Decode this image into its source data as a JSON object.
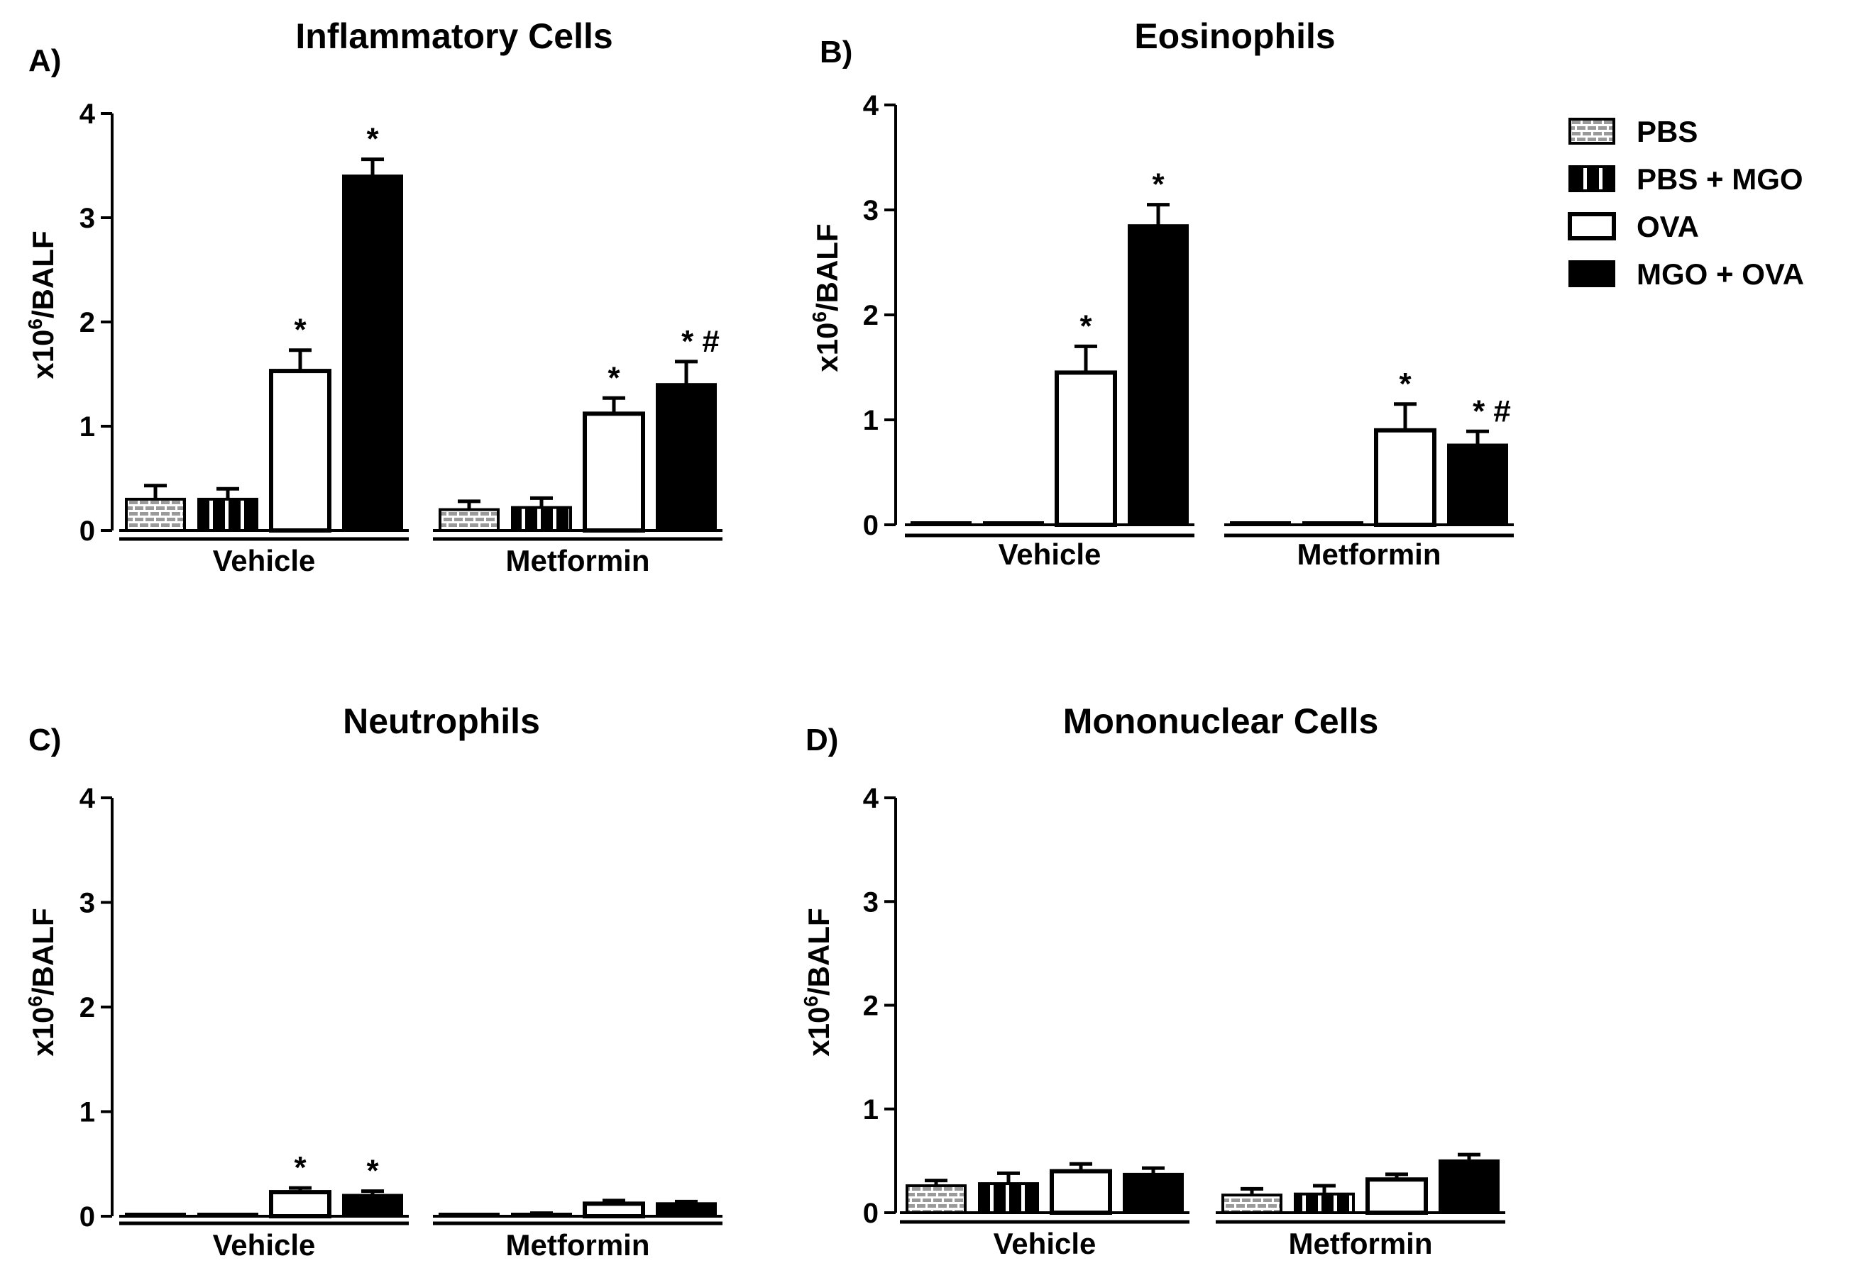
{
  "legend": {
    "entries": [
      {
        "label": "PBS",
        "pattern": "brick"
      },
      {
        "label": "PBS + MGO",
        "pattern": "stripes"
      },
      {
        "label": "OVA",
        "pattern": "open"
      },
      {
        "label": "MGO + OVA",
        "pattern": "solid"
      }
    ]
  },
  "chart_data": [
    {
      "type": "bar",
      "panel": "A)",
      "title": "Inflammatory Cells",
      "ylabel": "x10^6/BALF",
      "ylim": [
        0,
        4
      ],
      "yticks": [
        "0",
        "1",
        "2",
        "3",
        "4"
      ],
      "groups": [
        "Vehicle",
        "Metformin"
      ],
      "series": [
        {
          "name": "PBS",
          "values": [
            0.3,
            0.2
          ],
          "errors": [
            0.13,
            0.08
          ],
          "annotations": [
            "",
            ""
          ]
        },
        {
          "name": "PBS + MGO",
          "values": [
            0.3,
            0.22
          ],
          "errors": [
            0.1,
            0.09
          ],
          "annotations": [
            "",
            ""
          ]
        },
        {
          "name": "OVA",
          "values": [
            1.53,
            1.12
          ],
          "errors": [
            0.2,
            0.15
          ],
          "annotations": [
            "*",
            "*"
          ]
        },
        {
          "name": "MGO + OVA",
          "values": [
            3.4,
            1.4
          ],
          "errors": [
            0.16,
            0.22
          ],
          "annotations": [
            "*",
            "* #"
          ]
        }
      ]
    },
    {
      "type": "bar",
      "panel": "B)",
      "title": "Eosinophils",
      "ylabel": "x10^6/BALF",
      "ylim": [
        0,
        4
      ],
      "yticks": [
        "0",
        "1",
        "2",
        "3",
        "4"
      ],
      "groups": [
        "Vehicle",
        "Metformin"
      ],
      "series": [
        {
          "name": "PBS",
          "values": [
            0.01,
            0.01
          ],
          "errors": [
            0,
            0
          ],
          "annotations": [
            "",
            ""
          ]
        },
        {
          "name": "PBS + MGO",
          "values": [
            0.01,
            0.01
          ],
          "errors": [
            0,
            0
          ],
          "annotations": [
            "",
            ""
          ]
        },
        {
          "name": "OVA",
          "values": [
            1.45,
            0.9
          ],
          "errors": [
            0.25,
            0.25
          ],
          "annotations": [
            "*",
            "*"
          ]
        },
        {
          "name": "MGO + OVA",
          "values": [
            2.85,
            0.76
          ],
          "errors": [
            0.2,
            0.13
          ],
          "annotations": [
            "*",
            "* #"
          ]
        }
      ]
    },
    {
      "type": "bar",
      "panel": "C)",
      "title": "Neutrophils",
      "ylabel": "x10^6/BALF",
      "ylim": [
        0,
        4
      ],
      "yticks": [
        "0",
        "1",
        "2",
        "3",
        "4"
      ],
      "groups": [
        "Vehicle",
        "Metformin"
      ],
      "series": [
        {
          "name": "PBS",
          "values": [
            0.0,
            0.01
          ],
          "errors": [
            0,
            0
          ],
          "annotations": [
            "",
            ""
          ]
        },
        {
          "name": "PBS + MGO",
          "values": [
            0.01,
            0.02
          ],
          "errors": [
            0,
            0.01
          ],
          "annotations": [
            "",
            ""
          ]
        },
        {
          "name": "OVA",
          "values": [
            0.23,
            0.12
          ],
          "errors": [
            0.04,
            0.03
          ],
          "annotations": [
            "*",
            ""
          ]
        },
        {
          "name": "MGO + OVA",
          "values": [
            0.2,
            0.12
          ],
          "errors": [
            0.04,
            0.02
          ],
          "annotations": [
            "*",
            ""
          ]
        }
      ]
    },
    {
      "type": "bar",
      "panel": "D)",
      "title": "Mononuclear Cells",
      "ylabel": "x10^6/BALF",
      "ylim": [
        0,
        4
      ],
      "yticks": [
        "0",
        "1",
        "2",
        "3",
        "4"
      ],
      "groups": [
        "Vehicle",
        "Metformin"
      ],
      "series": [
        {
          "name": "PBS",
          "values": [
            0.26,
            0.17
          ],
          "errors": [
            0.05,
            0.06
          ],
          "annotations": [
            "",
            ""
          ]
        },
        {
          "name": "PBS + MGO",
          "values": [
            0.28,
            0.18
          ],
          "errors": [
            0.1,
            0.08
          ],
          "annotations": [
            "",
            ""
          ]
        },
        {
          "name": "OVA",
          "values": [
            0.4,
            0.32
          ],
          "errors": [
            0.07,
            0.05
          ],
          "annotations": [
            "",
            ""
          ]
        },
        {
          "name": "MGO + OVA",
          "values": [
            0.37,
            0.5
          ],
          "errors": [
            0.06,
            0.06
          ],
          "annotations": [
            "",
            ""
          ]
        }
      ]
    }
  ]
}
